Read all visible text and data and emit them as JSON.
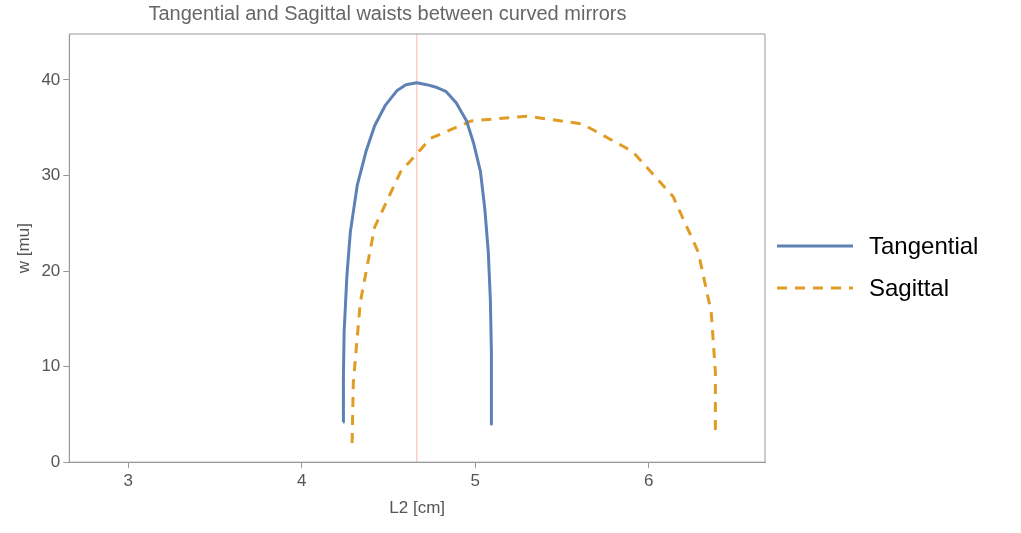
{
  "chart_data": {
    "type": "line",
    "title": "Tangential and Sagittal waists between curved mirrors",
    "xlabel": "L2 [cm]",
    "ylabel": "w [mu]",
    "xlim": [
      2.66,
      6.67
    ],
    "ylim": [
      0,
      44.8
    ],
    "xticks": [
      3,
      4,
      5,
      6
    ],
    "yticks": [
      0,
      10,
      20,
      30,
      40
    ],
    "grid": false,
    "legend": "right",
    "marker": "none",
    "series": [
      {
        "name": "Tangential",
        "color": "#5e81b5",
        "line_style": "solid",
        "x": [
          4.238,
          4.24,
          4.244,
          4.26,
          4.28,
          4.32,
          4.37,
          4.42,
          4.48,
          4.55,
          4.6,
          4.663,
          4.72,
          4.78,
          4.83,
          4.89,
          4.95,
          4.99,
          5.03,
          5.055,
          5.075,
          5.087,
          5.093,
          5.093
        ],
        "values": [
          4.2,
          9,
          13.6,
          19.5,
          24.1,
          29,
          32.5,
          35.2,
          37.3,
          38.9,
          39.5,
          39.7,
          39.5,
          39.2,
          38.8,
          37.6,
          35.7,
          33.4,
          30.4,
          26.5,
          22,
          17,
          11.5,
          4.0
        ]
      },
      {
        "name": "Sagittal",
        "color": "#e19c24",
        "line_style": "dashed",
        "x": [
          4.29,
          4.297,
          4.337,
          4.42,
          4.57,
          4.744,
          4.977,
          5.297,
          5.616,
          5.907,
          6.14,
          6.285,
          6.36,
          6.384,
          6.384
        ],
        "values": [
          2.0,
          8.3,
          16.7,
          24.6,
          30.4,
          33.9,
          35.7,
          36.2,
          35.4,
          32.5,
          27.8,
          22,
          15.7,
          9.4,
          3.3
        ]
      }
    ],
    "ref_lines": [
      {
        "axis": "x",
        "value": 4.663,
        "color": "#ffb3b3"
      }
    ]
  }
}
